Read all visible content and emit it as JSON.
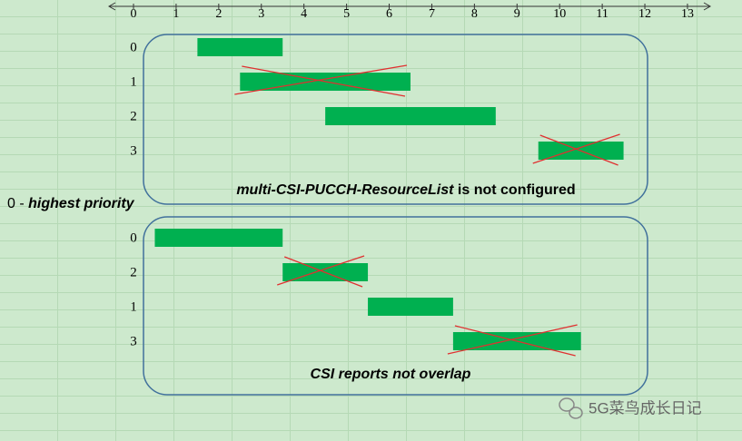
{
  "axis": {
    "ticks": [
      0,
      1,
      2,
      3,
      4,
      5,
      6,
      7,
      8,
      9,
      10,
      11,
      12,
      13
    ]
  },
  "side_note": {
    "prefix": "0 -",
    "emphasis": "highest priority"
  },
  "panels": [
    {
      "caption_italic": "multi-CSI-PUCCH-ResourceList",
      "caption_rest": "is not configured",
      "rows": [
        {
          "label": "0",
          "start": 1.5,
          "end": 3.5,
          "crossed": false
        },
        {
          "label": "1",
          "start": 2.5,
          "end": 6.5,
          "crossed": true
        },
        {
          "label": "2",
          "start": 4.5,
          "end": 8.5,
          "crossed": false
        },
        {
          "label": "3",
          "start": 9.5,
          "end": 11.5,
          "crossed": true
        }
      ]
    },
    {
      "caption_italic": "CSI reports not overlap",
      "rows": [
        {
          "label": "0",
          "start": 0.5,
          "end": 3.5,
          "crossed": false
        },
        {
          "label": "2",
          "start": 3.5,
          "end": 5.5,
          "crossed": true
        },
        {
          "label": "1",
          "start": 5.5,
          "end": 7.5,
          "crossed": false
        },
        {
          "label": "3",
          "start": 7.5,
          "end": 10.5,
          "crossed": true
        }
      ]
    }
  ],
  "watermark": "5G菜鸟成长日记"
}
